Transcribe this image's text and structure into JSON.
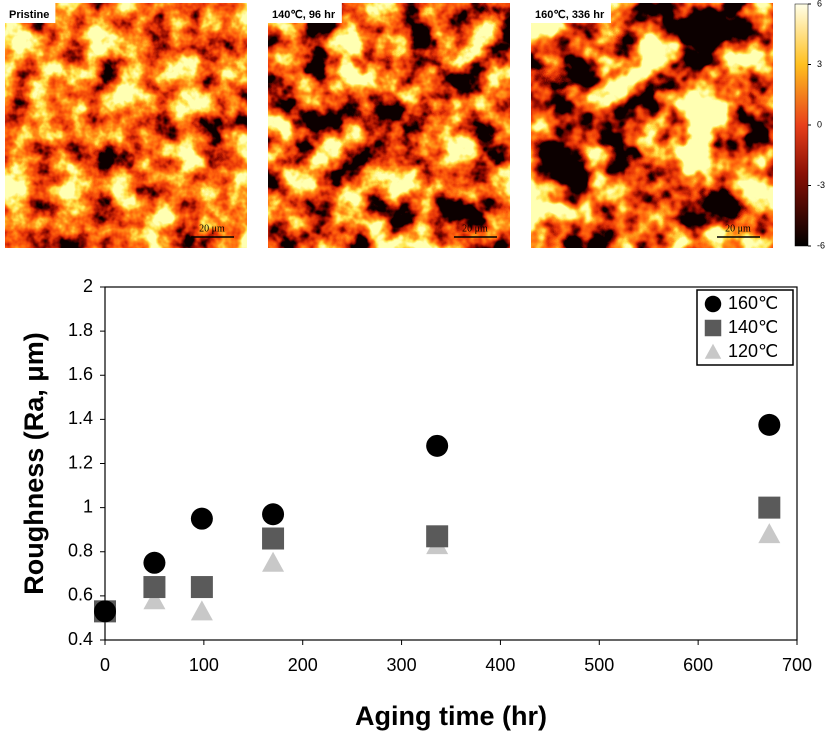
{
  "images": [
    {
      "label": "Pristine",
      "scale_bar": "20 μm"
    },
    {
      "label": "140℃, 96 hr",
      "scale_bar": "20 μm"
    },
    {
      "label": "160℃, 336 hr",
      "scale_bar": "20 μm"
    }
  ],
  "colorbar": {
    "lim": [
      -6,
      6
    ],
    "ticks": [
      6,
      3,
      0,
      -3,
      -6
    ]
  },
  "chart_data": {
    "type": "scatter",
    "xlabel": "Aging time (hr)",
    "ylabel": "Roughness (Ra, μm)",
    "xlim": [
      0,
      700
    ],
    "xticks": [
      0,
      100,
      200,
      300,
      400,
      500,
      600,
      700
    ],
    "ylim": [
      0.4,
      2
    ],
    "yticks": [
      0.4,
      0.6,
      0.8,
      1,
      1.2,
      1.4,
      1.6,
      1.8,
      2
    ],
    "legend": "upper right",
    "series": [
      {
        "name": "160℃",
        "color": "#000000",
        "marker": "circle",
        "x": [
          0,
          50,
          98,
          170,
          336,
          672
        ],
        "values": [
          0.53,
          0.75,
          0.95,
          0.97,
          1.28,
          1.375
        ]
      },
      {
        "name": "140℃",
        "color": "#5a5a5a",
        "marker": "square",
        "x": [
          0,
          50,
          98,
          170,
          336,
          672
        ],
        "values": [
          0.53,
          0.64,
          0.64,
          0.86,
          0.87,
          1.0
        ]
      },
      {
        "name": "120℃",
        "color": "#c8c8c8",
        "marker": "triangle",
        "x": [
          0,
          50,
          98,
          170,
          336,
          672
        ],
        "values": [
          0.52,
          0.58,
          0.53,
          0.75,
          0.83,
          0.88
        ]
      }
    ]
  }
}
